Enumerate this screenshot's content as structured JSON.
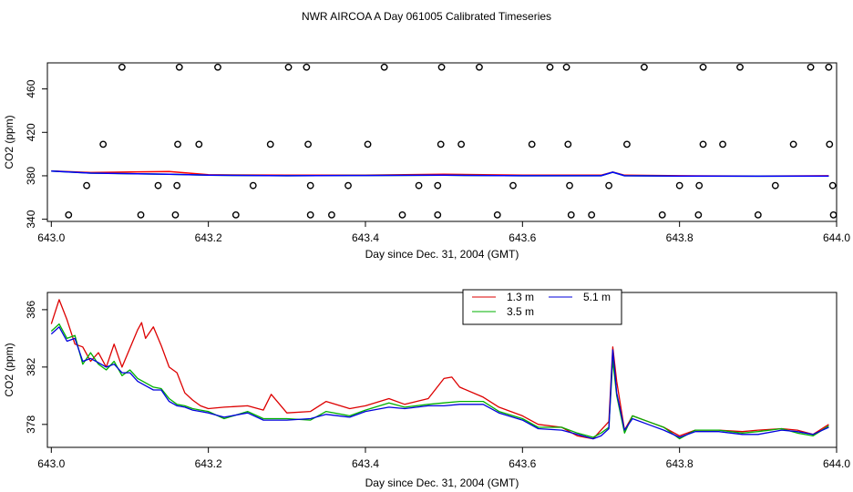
{
  "title": "NWR AIRCOA A  Day 061005  Calibrated Timeseries",
  "chart_data": [
    {
      "type": "scatter+line",
      "xlabel": "Day since Dec. 31, 2004 (GMT)",
      "ylabel": "CO2 (ppm)",
      "xlim": [
        642.995,
        644.0
      ],
      "ylim": [
        338,
        484
      ],
      "xticks": [
        "643.0",
        "643.2",
        "643.4",
        "643.6",
        "643.8",
        "644.0"
      ],
      "xtick_values": [
        643.0,
        643.2,
        643.4,
        643.6,
        643.8,
        644.0
      ],
      "yticks": [
        "340",
        "380",
        "420",
        "460"
      ],
      "ytick_values": [
        340,
        380,
        420,
        460
      ],
      "cal_points": [
        [
          643.09,
          480
        ],
        [
          643.163,
          480
        ],
        [
          643.212,
          480
        ],
        [
          643.302,
          480
        ],
        [
          643.325,
          480
        ],
        [
          643.424,
          480
        ],
        [
          643.497,
          480
        ],
        [
          643.545,
          480
        ],
        [
          643.635,
          480
        ],
        [
          643.656,
          480
        ],
        [
          643.755,
          480
        ],
        [
          643.83,
          480
        ],
        [
          643.877,
          480
        ],
        [
          643.967,
          480
        ],
        [
          643.99,
          480
        ],
        [
          643.066,
          409
        ],
        [
          643.161,
          409
        ],
        [
          643.188,
          409
        ],
        [
          643.279,
          409
        ],
        [
          643.327,
          409
        ],
        [
          643.403,
          409
        ],
        [
          643.496,
          409
        ],
        [
          643.522,
          409
        ],
        [
          643.612,
          409
        ],
        [
          643.658,
          409
        ],
        [
          643.733,
          409
        ],
        [
          643.83,
          409
        ],
        [
          643.855,
          409
        ],
        [
          643.945,
          409
        ],
        [
          643.991,
          409
        ],
        [
          643.045,
          371
        ],
        [
          643.136,
          371
        ],
        [
          643.16,
          371
        ],
        [
          643.257,
          371
        ],
        [
          643.33,
          371
        ],
        [
          643.378,
          371
        ],
        [
          643.468,
          371
        ],
        [
          643.492,
          371
        ],
        [
          643.588,
          371
        ],
        [
          643.66,
          371
        ],
        [
          643.71,
          371
        ],
        [
          643.8,
          371
        ],
        [
          643.825,
          371
        ],
        [
          643.922,
          371
        ],
        [
          643.995,
          371
        ],
        [
          643.022,
          344
        ],
        [
          643.114,
          344
        ],
        [
          643.158,
          344
        ],
        [
          643.235,
          344
        ],
        [
          643.33,
          344
        ],
        [
          643.357,
          344
        ],
        [
          643.447,
          344
        ],
        [
          643.492,
          344
        ],
        [
          643.568,
          344
        ],
        [
          643.662,
          344
        ],
        [
          643.688,
          344
        ],
        [
          643.778,
          344
        ],
        [
          643.824,
          344
        ],
        [
          643.9,
          344
        ],
        [
          643.996,
          344
        ]
      ],
      "series": [
        {
          "name": "1.3 m",
          "color": "#ff0000",
          "x": [
            643.0,
            643.05,
            643.1,
            643.15,
            643.2,
            643.3,
            643.4,
            643.5,
            643.6,
            643.7,
            643.715,
            643.73,
            643.8,
            643.9,
            643.99
          ],
          "y": [
            384.5,
            383,
            383.5,
            384,
            381,
            380.5,
            380.5,
            381.5,
            380.5,
            380.5,
            383.5,
            380.5,
            380,
            379.8,
            380
          ]
        },
        {
          "name": "3.5 m",
          "color": "#00c000",
          "x": [
            643.0,
            643.05,
            643.1,
            643.15,
            643.2,
            643.3,
            643.4,
            643.5,
            643.6,
            643.7,
            643.715,
            643.73,
            643.8,
            643.9,
            643.99
          ],
          "y": [
            384.3,
            382.5,
            382,
            381.5,
            380.5,
            380,
            380.3,
            380.5,
            380,
            380,
            383.3,
            380,
            379.8,
            379.6,
            379.8
          ]
        },
        {
          "name": "5.1 m",
          "color": "#0000ff",
          "x": [
            643.0,
            643.05,
            643.1,
            643.15,
            643.2,
            643.3,
            643.4,
            643.5,
            643.6,
            643.7,
            643.715,
            643.73,
            643.8,
            643.9,
            643.99
          ],
          "y": [
            384.3,
            382.5,
            382,
            381.5,
            380.5,
            380,
            380.3,
            380.5,
            380,
            380,
            383.3,
            380,
            379.8,
            379.6,
            379.8
          ]
        }
      ]
    },
    {
      "type": "line",
      "xlabel": "Day since Dec. 31, 2004 (GMT)",
      "ylabel": "CO2 (ppm)",
      "xlim": [
        642.995,
        644.0
      ],
      "ylim": [
        376.4,
        387.2
      ],
      "xticks": [
        "643.0",
        "643.2",
        "643.4",
        "643.6",
        "643.8",
        "644.0"
      ],
      "xtick_values": [
        643.0,
        643.2,
        643.4,
        643.6,
        643.8,
        644.0
      ],
      "yticks": [
        "378",
        "382",
        "386"
      ],
      "ytick_values": [
        378,
        382,
        386
      ],
      "legend": {
        "position": "top-center",
        "entries": [
          "1.3 m",
          "3.5 m",
          "5.1 m"
        ]
      },
      "series": [
        {
          "name": "1.3 m",
          "color": "#dd0000",
          "x": [
            643.0,
            643.01,
            643.02,
            643.03,
            643.04,
            643.05,
            643.06,
            643.07,
            643.08,
            643.09,
            643.1,
            643.11,
            643.115,
            643.12,
            643.13,
            643.14,
            643.15,
            643.16,
            643.17,
            643.18,
            643.19,
            643.2,
            643.22,
            643.25,
            643.27,
            643.28,
            643.3,
            643.33,
            643.35,
            643.38,
            643.4,
            643.43,
            643.45,
            643.48,
            643.5,
            643.51,
            643.52,
            643.55,
            643.57,
            643.6,
            643.62,
            643.65,
            643.67,
            643.69,
            643.7,
            643.71,
            643.715,
            643.72,
            643.73,
            643.74,
            643.76,
            643.78,
            643.8,
            643.82,
            643.85,
            643.88,
            643.9,
            643.93,
            643.95,
            643.97,
            643.99
          ],
          "y": [
            385.0,
            386.7,
            385.3,
            383.6,
            383.4,
            382.4,
            383.0,
            382.0,
            383.6,
            382.0,
            383.3,
            384.6,
            385.1,
            384.0,
            384.8,
            383.5,
            382.0,
            381.6,
            380.2,
            379.7,
            379.3,
            379.1,
            379.2,
            379.3,
            379.0,
            380.1,
            378.8,
            378.9,
            379.6,
            379.1,
            379.3,
            379.8,
            379.4,
            379.8,
            381.2,
            381.3,
            380.6,
            379.9,
            379.2,
            378.6,
            378.0,
            377.8,
            377.2,
            377.0,
            377.6,
            378.2,
            383.4,
            381.0,
            377.6,
            378.6,
            378.2,
            377.8,
            377.2,
            377.6,
            377.6,
            377.5,
            377.6,
            377.7,
            377.6,
            377.3,
            378.0
          ]
        },
        {
          "name": "3.5 m",
          "color": "#00b000",
          "x": [
            643.0,
            643.01,
            643.02,
            643.03,
            643.04,
            643.05,
            643.06,
            643.07,
            643.08,
            643.09,
            643.1,
            643.11,
            643.12,
            643.13,
            643.14,
            643.15,
            643.16,
            643.17,
            643.18,
            643.19,
            643.2,
            643.22,
            643.25,
            643.27,
            643.3,
            643.33,
            643.35,
            643.38,
            643.4,
            643.43,
            643.45,
            643.48,
            643.5,
            643.52,
            643.55,
            643.57,
            643.6,
            643.62,
            643.65,
            643.67,
            643.69,
            643.7,
            643.71,
            643.715,
            643.72,
            643.73,
            643.74,
            643.76,
            643.78,
            643.8,
            643.82,
            643.85,
            643.88,
            643.9,
            643.93,
            643.95,
            643.97,
            643.99
          ],
          "y": [
            384.5,
            385.0,
            384.0,
            384.2,
            382.2,
            383.0,
            382.2,
            381.8,
            382.4,
            381.4,
            381.8,
            381.2,
            380.9,
            380.6,
            380.5,
            379.8,
            379.4,
            379.3,
            379.1,
            379.0,
            378.9,
            378.4,
            378.9,
            378.4,
            378.4,
            378.3,
            378.9,
            378.6,
            379.0,
            379.5,
            379.2,
            379.4,
            379.5,
            379.6,
            379.6,
            378.9,
            378.4,
            377.8,
            377.8,
            377.4,
            377.1,
            377.4,
            377.8,
            382.5,
            380.0,
            377.4,
            378.6,
            378.2,
            377.8,
            377.0,
            377.6,
            377.6,
            377.4,
            377.5,
            377.7,
            377.4,
            377.2,
            377.9
          ]
        },
        {
          "name": "5.1 m",
          "color": "#0000dd",
          "x": [
            643.0,
            643.01,
            643.02,
            643.03,
            643.04,
            643.05,
            643.06,
            643.07,
            643.08,
            643.09,
            643.1,
            643.11,
            643.12,
            643.13,
            643.14,
            643.15,
            643.16,
            643.17,
            643.18,
            643.19,
            643.2,
            643.22,
            643.25,
            643.27,
            643.3,
            643.33,
            643.35,
            643.38,
            643.4,
            643.43,
            643.45,
            643.48,
            643.5,
            643.52,
            643.55,
            643.57,
            643.6,
            643.62,
            643.65,
            643.67,
            643.69,
            643.7,
            643.71,
            643.715,
            643.72,
            643.73,
            643.74,
            643.76,
            643.78,
            643.8,
            643.82,
            643.85,
            643.88,
            643.9,
            643.93,
            643.95,
            643.97,
            643.99
          ],
          "y": [
            384.3,
            384.8,
            383.8,
            384.0,
            382.4,
            382.6,
            382.3,
            382.0,
            382.2,
            381.6,
            381.6,
            381.0,
            380.7,
            380.4,
            380.4,
            379.6,
            379.3,
            379.2,
            379.0,
            378.9,
            378.8,
            378.5,
            378.8,
            378.3,
            378.3,
            378.4,
            378.7,
            378.5,
            378.9,
            379.2,
            379.1,
            379.3,
            379.3,
            379.4,
            379.4,
            378.8,
            378.3,
            377.7,
            377.6,
            377.3,
            377.0,
            377.2,
            377.7,
            383.2,
            380.2,
            377.6,
            378.4,
            378.0,
            377.6,
            377.1,
            377.5,
            377.5,
            377.3,
            377.3,
            377.6,
            377.5,
            377.3,
            377.8
          ]
        }
      ]
    }
  ]
}
